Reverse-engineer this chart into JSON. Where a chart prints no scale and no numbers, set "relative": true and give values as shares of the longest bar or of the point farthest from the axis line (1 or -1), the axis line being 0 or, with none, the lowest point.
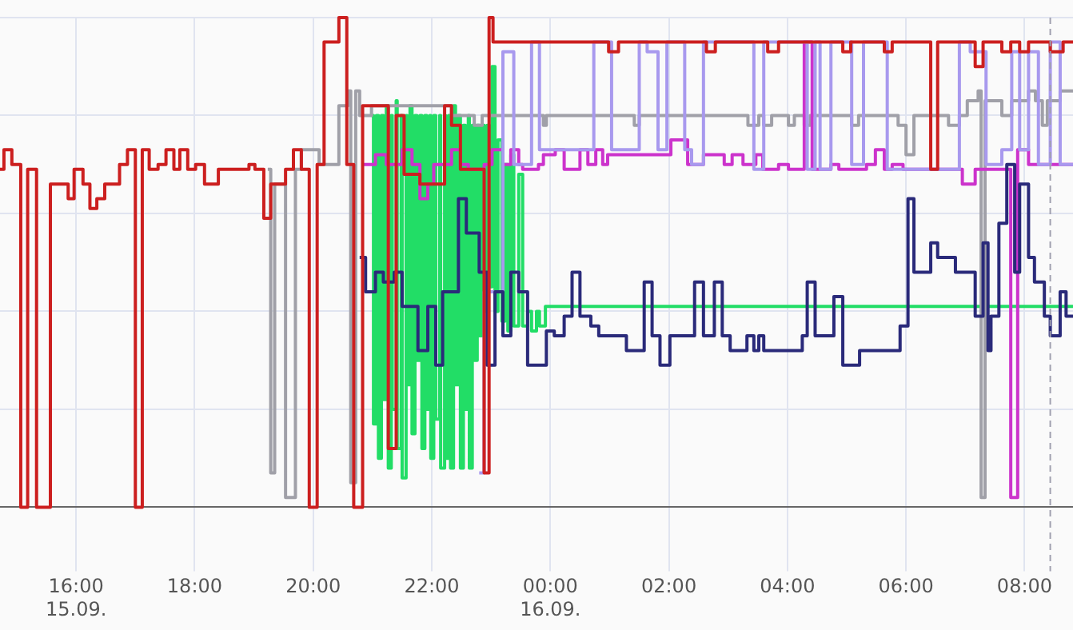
{
  "chart_data": {
    "type": "step",
    "relative": true,
    "grid": true,
    "xlim": [
      "--09-15T14:43",
      "--09-16T08:49"
    ],
    "xticks": [
      {
        "value": "--09-15T16:00",
        "label": "16:00\n15.09."
      },
      {
        "value": "--09-15T18:00",
        "label": "18:00"
      },
      {
        "value": "--09-15T20:00",
        "label": "20:00"
      },
      {
        "value": "--09-15T22:00",
        "label": "22:00"
      },
      {
        "value": "--09-16T00:00",
        "label": "00:00\n16.09."
      },
      {
        "value": "--09-16T02:00",
        "label": "02:00"
      },
      {
        "value": "--09-16T04:00",
        "label": "04:00"
      },
      {
        "value": "--09-16T06:00",
        "label": "06:00"
      },
      {
        "value": "--09-16T08:00",
        "label": "08:00"
      }
    ],
    "ref_lines": [
      {
        "axis": "x",
        "value": "--09-16T08:26",
        "color": "#a0a0b0",
        "line_style": "dashed"
      }
    ],
    "series": [
      {
        "color": "#22dd66",
        "x": [
          "--09-15T20:59",
          "--09-15T21:01",
          "--09-15T21:04",
          "--09-15T21:06",
          "--09-15T21:09",
          "--09-15T21:11",
          "--09-15T21:14",
          "--09-15T21:16",
          "--09-15T21:19",
          "--09-15T21:20",
          "--09-15T21:24",
          "--09-15T21:25",
          "--09-15T21:29",
          "--09-15T21:30",
          "--09-15T21:34",
          "--09-15T21:35",
          "--09-15T21:38",
          "--09-15T21:40",
          "--09-15T21:43",
          "--09-15T21:45",
          "--09-15T21:48",
          "--09-15T21:50",
          "--09-15T21:53",
          "--09-15T21:55",
          "--09-15T21:58",
          "--09-15T21:59",
          "--09-15T22:02",
          "--09-15T22:04",
          "--09-15T22:08",
          "--09-15T22:09",
          "--09-15T22:13",
          "--09-15T22:14",
          "--09-15T22:17",
          "--09-15T22:19",
          "--09-15T22:22",
          "--09-15T22:24",
          "--09-15T22:27",
          "--09-15T22:29",
          "--09-15T22:32",
          "--09-15T22:34",
          "--09-15T22:37",
          "--09-15T22:38",
          "--09-15T22:41",
          "--09-15T22:43",
          "--09-15T22:46",
          "--09-15T22:48",
          "--09-15T22:51",
          "--09-15T22:53",
          "--09-15T22:56",
          "--09-15T22:58",
          "--09-15T23:01",
          "--09-15T23:04",
          "--09-15T23:07",
          "--09-15T23:11",
          "--09-15T23:14",
          "--09-15T23:17",
          "--09-15T23:20",
          "--09-15T23:23",
          "--09-15T23:28",
          "--09-15T23:32",
          "--09-15T23:37",
          "--09-15T23:41",
          "--09-15T23:46",
          "--09-15T23:49",
          "--09-15T23:55",
          "--09-16T08:49"
        ],
        "values": [
          0.8,
          0.17,
          0.8,
          0.1,
          0.8,
          0.22,
          0.82,
          0.08,
          0.8,
          0.2,
          0.83,
          0.12,
          0.8,
          0.06,
          0.8,
          0.25,
          0.82,
          0.15,
          0.8,
          0.3,
          0.8,
          0.12,
          0.8,
          0.2,
          0.8,
          0.1,
          0.8,
          0.18,
          0.8,
          0.08,
          0.8,
          0.1,
          0.8,
          0.08,
          0.82,
          0.25,
          0.8,
          0.08,
          0.78,
          0.2,
          0.8,
          0.08,
          0.78,
          0.3,
          0.78,
          0.35,
          0.78,
          0.4,
          0.78,
          0.45,
          0.9,
          0.4,
          0.75,
          0.38,
          0.7,
          0.36,
          0.72,
          0.37,
          0.68,
          0.37,
          0.4,
          0.36,
          0.4,
          0.37,
          0.41,
          0.41
        ]
      },
      {
        "color": "#a0a0a8",
        "x": [
          "--09-15T19:14",
          "--09-15T19:17",
          "--09-15T19:21",
          "--09-15T19:32",
          "--09-15T19:42",
          "--09-15T19:48",
          "--09-15T20:06",
          "--09-15T20:26",
          "--09-15T20:35",
          "--09-15T20:38",
          "--09-15T20:43",
          "--09-15T20:47",
          "--09-15T20:59",
          "--09-15T22:20",
          "--09-15T22:43",
          "--09-15T22:51",
          "--09-15T23:53",
          "--09-15T23:56",
          "--09-16T01:25",
          "--09-16T01:30",
          "--09-16T03:20",
          "--09-16T03:31",
          "--09-16T03:36",
          "--09-16T03:44",
          "--09-16T04:01",
          "--09-16T04:07",
          "--09-16T04:17",
          "--09-16T04:23",
          "--09-16T05:05",
          "--09-16T05:12",
          "--09-16T05:52",
          "--09-16T06:00",
          "--09-16T06:08",
          "--09-16T06:43",
          "--09-16T06:54",
          "--09-16T07:02",
          "--09-16T07:13",
          "--09-16T07:16",
          "--09-16T07:20",
          "--09-16T07:37",
          "--09-16T07:47",
          "--09-16T08:04",
          "--09-16T08:11",
          "--09-16T08:18",
          "--09-16T08:23",
          "--09-16T08:36",
          "--09-16T08:49"
        ],
        "values": [
          0.69,
          0.07,
          0.66,
          0.02,
          0.69,
          0.73,
          0.7,
          0.82,
          0.85,
          0.05,
          0.85,
          0.8,
          0.82,
          0.8,
          0.78,
          0.8,
          0.78,
          0.8,
          0.78,
          0.8,
          0.78,
          0.8,
          0.78,
          0.8,
          0.78,
          0.8,
          0.78,
          0.8,
          0.78,
          0.8,
          0.78,
          0.72,
          0.8,
          0.78,
          0.8,
          0.83,
          0.85,
          0.02,
          0.83,
          0.8,
          0.83,
          0.85,
          0.83,
          0.78,
          0.83,
          0.85,
          0.85
        ]
      },
      {
        "color": "#cc33cc",
        "x": [
          "--09-15T20:50",
          "--09-15T21:03",
          "--09-15T21:14",
          "--09-15T21:30",
          "--09-15T21:40",
          "--09-15T21:48",
          "--09-15T21:56",
          "--09-15T22:02",
          "--09-15T22:20",
          "--09-15T22:29",
          "--09-15T22:37",
          "--09-15T22:53",
          "--09-15T23:01",
          "--09-15T23:12",
          "--09-15T23:20",
          "--09-15T23:28",
          "--09-15T23:32",
          "--09-15T23:48",
          "--09-15T23:53",
          "--09-16T00:05",
          "--09-16T00:14",
          "--09-16T00:30",
          "--09-16T00:38",
          "--09-16T00:46",
          "--09-16T00:53",
          "--09-16T00:58",
          "--09-16T02:02",
          "--09-16T02:19",
          "--09-16T02:35",
          "--09-16T02:56",
          "--09-16T03:04",
          "--09-16T03:15",
          "--09-16T03:28",
          "--09-16T03:35",
          "--09-16T03:51",
          "--09-16T04:01",
          "--09-16T04:17",
          "--09-16T04:25",
          "--09-16T04:44",
          "--09-16T04:52",
          "--09-16T05:20",
          "--09-16T05:29",
          "--09-16T05:38",
          "--09-16T05:46",
          "--09-16T05:57",
          "--09-16T06:57",
          "--09-16T07:10",
          "--09-16T07:46",
          "--09-16T07:53",
          "--09-16T08:04",
          "--09-16T08:49"
        ],
        "values": [
          0.7,
          0.72,
          0.7,
          0.73,
          0.7,
          0.63,
          0.66,
          0.7,
          0.73,
          0.7,
          0.69,
          0.7,
          0.73,
          0.7,
          0.73,
          0.7,
          0.69,
          0.7,
          0.72,
          0.73,
          0.69,
          0.73,
          0.7,
          0.73,
          0.7,
          0.72,
          0.75,
          0.7,
          0.72,
          0.7,
          0.72,
          0.7,
          0.72,
          0.69,
          0.7,
          0.69,
          0.95,
          0.69,
          0.7,
          0.69,
          0.7,
          0.73,
          0.69,
          0.7,
          0.69,
          0.66,
          0.69,
          0.02,
          0.73,
          0.7,
          0.7
        ]
      },
      {
        "color": "#a899ee",
        "x": [
          "--09-15T22:48",
          "--09-15T22:53",
          "--09-15T23:12",
          "--09-15T23:23",
          "--09-15T23:41",
          "--09-15T23:49",
          "--09-16T00:44",
          "--09-16T01:02",
          "--09-16T01:30",
          "--09-16T01:38",
          "--09-16T01:49",
          "--09-16T01:58",
          "--09-16T02:16",
          "--09-16T02:23",
          "--09-16T02:35",
          "--09-16T03:26",
          "--09-16T03:36",
          "--09-16T04:20",
          "--09-16T04:28",
          "--09-16T04:33",
          "--09-16T04:44",
          "--09-16T05:05",
          "--09-16T05:17",
          "--09-16T05:41",
          "--09-16T06:54",
          "--09-16T07:05",
          "--09-16T07:21",
          "--09-16T07:37",
          "--09-16T07:47",
          "--09-16T07:55",
          "--09-16T08:04",
          "--09-16T08:14",
          "--09-16T08:26",
          "--09-16T08:36",
          "--09-16T08:49"
        ],
        "values": [
          0.07,
          0.44,
          0.93,
          0.7,
          0.95,
          0.73,
          0.95,
          0.73,
          0.95,
          0.93,
          0.73,
          0.95,
          0.73,
          0.7,
          0.95,
          0.69,
          0.95,
          0.69,
          0.95,
          0.69,
          0.95,
          0.7,
          0.95,
          0.69,
          0.95,
          0.93,
          0.7,
          0.73,
          0.93,
          0.73,
          0.93,
          0.7,
          0.95,
          0.7,
          0.7
        ]
      },
      {
        "color": "#2a2a7a",
        "x": [
          "--09-15T20:47",
          "--09-15T20:53",
          "--09-15T21:03",
          "--09-15T21:11",
          "--09-15T21:22",
          "--09-15T21:30",
          "--09-15T21:46",
          "--09-15T21:56",
          "--09-15T22:04",
          "--09-15T22:11",
          "--09-15T22:27",
          "--09-15T22:35",
          "--09-15T22:48",
          "--09-15T22:56",
          "--09-15T23:04",
          "--09-15T23:12",
          "--09-15T23:20",
          "--09-15T23:28",
          "--09-15T23:37",
          "--09-15T23:56",
          "--09-16T00:04",
          "--09-16T00:14",
          "--09-16T00:22",
          "--09-16T00:30",
          "--09-16T00:41",
          "--09-16T00:49",
          "--09-16T01:17",
          "--09-16T01:35",
          "--09-16T01:43",
          "--09-16T01:51",
          "--09-16T02:01",
          "--09-16T02:26",
          "--09-16T02:35",
          "--09-16T02:46",
          "--09-16T02:54",
          "--09-16T03:02",
          "--09-16T03:19",
          "--09-16T03:26",
          "--09-16T03:31",
          "--09-16T03:36",
          "--09-16T04:15",
          "--09-16T04:20",
          "--09-16T04:28",
          "--09-16T04:47",
          "--09-16T04:56",
          "--09-16T05:13",
          "--09-16T05:54",
          "--09-16T06:02",
          "--09-16T06:08",
          "--09-16T06:25",
          "--09-16T06:32",
          "--09-16T06:50",
          "--09-16T07:10",
          "--09-16T07:18",
          "--09-16T07:23",
          "--09-16T07:26",
          "--09-16T07:34",
          "--09-16T07:42",
          "--09-16T07:50",
          "--09-16T07:55",
          "--09-16T08:04",
          "--09-16T08:10",
          "--09-16T08:20",
          "--09-16T08:26",
          "--09-16T08:36",
          "--09-16T08:42",
          "--09-16T08:49"
        ],
        "values": [
          0.51,
          0.44,
          0.48,
          0.46,
          0.48,
          0.41,
          0.32,
          0.41,
          0.29,
          0.44,
          0.63,
          0.56,
          0.48,
          0.29,
          0.44,
          0.35,
          0.48,
          0.44,
          0.29,
          0.36,
          0.35,
          0.39,
          0.48,
          0.39,
          0.37,
          0.35,
          0.32,
          0.46,
          0.35,
          0.29,
          0.35,
          0.46,
          0.35,
          0.46,
          0.35,
          0.32,
          0.35,
          0.32,
          0.35,
          0.32,
          0.35,
          0.46,
          0.35,
          0.43,
          0.29,
          0.32,
          0.37,
          0.63,
          0.48,
          0.54,
          0.51,
          0.48,
          0.39,
          0.54,
          0.32,
          0.39,
          0.58,
          0.7,
          0.48,
          0.66,
          0.51,
          0.46,
          0.39,
          0.35,
          0.44,
          0.39,
          0.39
        ]
      },
      {
        "color": "#cc1f1f",
        "x": [
          "--09-15T14:43",
          "--09-15T14:47",
          "--09-15T14:55",
          "--09-15T15:04",
          "--09-15T15:11",
          "--09-15T15:20",
          "--09-15T15:34",
          "--09-15T15:52",
          "--09-15T15:58",
          "--09-15T16:07",
          "--09-15T16:14",
          "--09-15T16:21",
          "--09-15T16:29",
          "--09-15T16:44",
          "--09-15T16:52",
          "--09-15T17:00",
          "--09-15T17:07",
          "--09-15T17:14",
          "--09-15T17:23",
          "--09-15T17:31",
          "--09-15T17:39",
          "--09-15T17:45",
          "--09-15T17:53",
          "--09-15T18:01",
          "--09-15T18:10",
          "--09-15T18:24",
          "--09-15T18:55",
          "--09-15T19:01",
          "--09-15T19:10",
          "--09-15T19:17",
          "--09-15T19:32",
          "--09-15T19:40",
          "--09-15T19:48",
          "--09-15T19:56",
          "--09-15T20:04",
          "--09-15T20:11",
          "--09-15T20:26",
          "--09-15T20:34",
          "--09-15T20:41",
          "--09-15T20:50",
          "--09-15T21:16",
          "--09-15T21:24",
          "--09-15T21:32",
          "--09-15T21:48",
          "--09-15T22:13",
          "--09-15T22:20",
          "--09-15T22:29",
          "--09-15T22:53",
          "--09-15T22:58",
          "--09-15T23:02",
          "--09-16T00:59",
          "--09-16T01:09",
          "--09-16T02:38",
          "--09-16T02:47",
          "--09-16T03:40",
          "--09-16T03:51",
          "--09-16T04:56",
          "--09-16T05:04",
          "--09-16T05:38",
          "--09-16T05:46",
          "--09-16T06:25",
          "--09-16T06:32",
          "--09-16T07:10",
          "--09-16T07:18",
          "--09-16T07:37",
          "--09-16T07:46",
          "--09-16T07:55",
          "--09-16T08:04",
          "--09-16T08:26",
          "--09-16T08:39",
          "--09-16T08:49"
        ],
        "values": [
          0.69,
          0.73,
          0.7,
          0,
          0.69,
          0,
          0.66,
          0.63,
          0.69,
          0.66,
          0.61,
          0.63,
          0.66,
          0.7,
          0.73,
          0,
          0.73,
          0.69,
          0.7,
          0.73,
          0.69,
          0.73,
          0.69,
          0.7,
          0.66,
          0.69,
          0.7,
          0.69,
          0.59,
          0.66,
          0.69,
          0.73,
          0.69,
          0,
          0.7,
          0.95,
          1,
          0.7,
          0,
          0.82,
          0.12,
          0.8,
          0.68,
          0.66,
          0.82,
          0.78,
          0.69,
          0.07,
          1,
          0.95,
          0.93,
          0.95,
          0.93,
          0.95,
          0.93,
          0.95,
          0.93,
          0.95,
          0.93,
          0.95,
          0.69,
          0.95,
          0.9,
          0.95,
          0.93,
          0.95,
          0.93,
          0.95,
          0.93,
          0.95,
          0.95
        ]
      }
    ]
  }
}
